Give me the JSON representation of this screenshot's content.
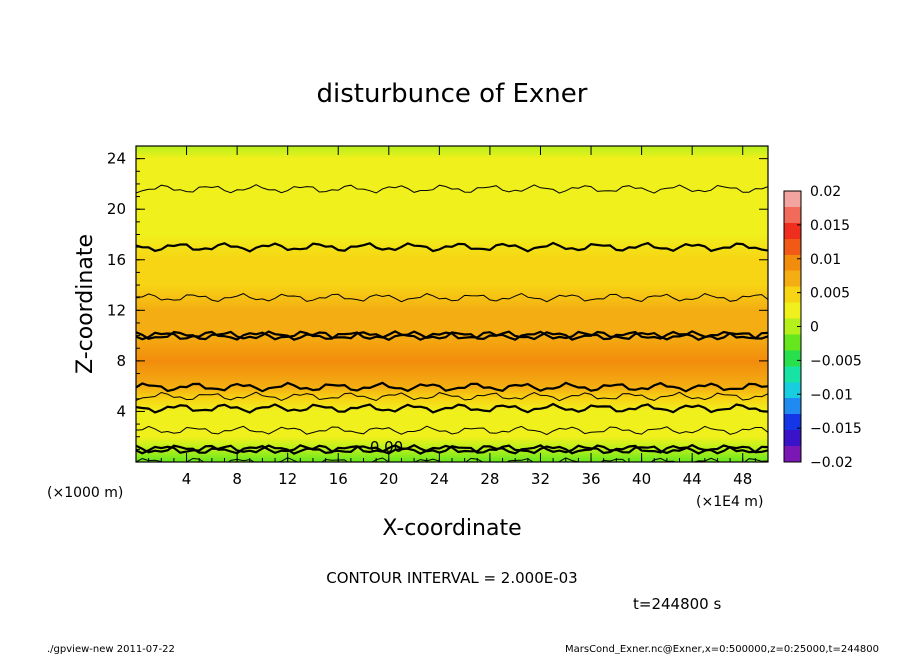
{
  "chart_data": {
    "type": "heatmap",
    "title": "disturbunce of Exner",
    "xlabel": "X-coordinate",
    "ylabel": "Z-coordinate",
    "x_unit_left": "(×1000 m)",
    "x_unit_right": "(×1E4 m)",
    "xlim": [
      0,
      50
    ],
    "ylim": [
      0,
      25
    ],
    "x_ticks": [
      "4",
      "8",
      "12",
      "16",
      "20",
      "24",
      "28",
      "32",
      "36",
      "40",
      "44",
      "48"
    ],
    "y_ticks": [
      "4",
      "8",
      "12",
      "16",
      "20",
      "24"
    ],
    "x_tick_values": [
      4,
      8,
      12,
      16,
      20,
      24,
      28,
      32,
      36,
      40,
      44,
      48
    ],
    "y_tick_values": [
      4,
      8,
      12,
      16,
      20,
      24
    ],
    "colorbar": {
      "min": -0.02,
      "max": 0.02,
      "tick_labels": [
        "0.02",
        "0.015",
        "0.01",
        "0.005",
        "0",
        "−0.005",
        "−0.01",
        "−0.015",
        "−0.02"
      ],
      "tick_values": [
        0.02,
        0.015,
        0.01,
        0.005,
        0,
        -0.005,
        -0.01,
        -0.015,
        -0.02
      ],
      "colors_low_to_high": [
        "#7b17b3",
        "#3a12c8",
        "#1436e6",
        "#1f8bf2",
        "#19cde0",
        "#17e3a5",
        "#27e04b",
        "#66e61c",
        "#b6f01c",
        "#f0f01c",
        "#f7d414",
        "#f4ad12",
        "#f28c0c",
        "#f05a14",
        "#f02e1e",
        "#f26a5a",
        "#f4a4a0"
      ]
    },
    "vertical_profile": [
      {
        "z": 0,
        "value": -0.002
      },
      {
        "z": 1,
        "value": 0.0
      },
      {
        "z": 2,
        "value": 0.0015
      },
      {
        "z": 3,
        "value": 0.0025
      },
      {
        "z": 4,
        "value": 0.0035
      },
      {
        "z": 5,
        "value": 0.0055
      },
      {
        "z": 6,
        "value": 0.0082
      },
      {
        "z": 8,
        "value": 0.0092
      },
      {
        "z": 10,
        "value": 0.008
      },
      {
        "z": 12,
        "value": 0.0065
      },
      {
        "z": 14,
        "value": 0.0055
      },
      {
        "z": 16,
        "value": 0.0045
      },
      {
        "z": 18,
        "value": 0.0035
      },
      {
        "z": 20,
        "value": 0.0028
      },
      {
        "z": 22,
        "value": 0.0018
      },
      {
        "z": 24,
        "value": 0.0012
      },
      {
        "z": 25,
        "value": 0.001
      }
    ],
    "contour_interval": 0.002,
    "contour_label": "0.00"
  },
  "annotations": {
    "contour_interval_text": "CONTOUR INTERVAL = 2.000E-03",
    "time_text": "t=244800 s",
    "footer_left": "./gpview-new   2011-07-22",
    "footer_right": "MarsCond_Exner.nc@Exner,x=0:500000,z=0:25000,t=244800"
  }
}
